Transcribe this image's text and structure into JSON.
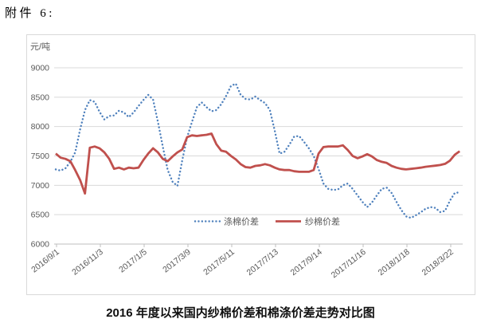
{
  "header": {
    "attachment_label": "附件 6:"
  },
  "title": "2016 年度以来国内纱棉价差和棉涤价差走势对比图",
  "chart_data": {
    "type": "line",
    "ylabel": "元/吨",
    "ylim": [
      6000,
      9000
    ],
    "yticks": [
      6000,
      6500,
      7000,
      7500,
      8000,
      8500,
      9000
    ],
    "xticklabels": [
      "2016/9/1",
      "2016/11/3",
      "2017/1/5",
      "2017/3/9",
      "2017/5/11",
      "2017/7/13",
      "2017/9/14",
      "2017/11/16",
      "2018/1/18",
      "2018/3/22"
    ],
    "x_unit": "weekly",
    "points_per_tick_interval": 9,
    "grid": true,
    "legend_position": "inside-bottom-center",
    "series": [
      {
        "name": "涤棉价差",
        "style": "dotted",
        "color": "#4F81BD",
        "values": [
          7270,
          7250,
          7290,
          7400,
          7560,
          7950,
          8280,
          8450,
          8420,
          8250,
          8120,
          8180,
          8190,
          8270,
          8240,
          8160,
          8240,
          8350,
          8450,
          8540,
          8460,
          8080,
          7660,
          7260,
          7060,
          6990,
          7430,
          7820,
          8080,
          8330,
          8410,
          8330,
          8260,
          8280,
          8380,
          8520,
          8690,
          8730,
          8540,
          8470,
          8460,
          8510,
          8450,
          8400,
          8280,
          7930,
          7540,
          7570,
          7690,
          7830,
          7840,
          7740,
          7630,
          7500,
          7280,
          7030,
          6940,
          6920,
          6930,
          7000,
          7030,
          6940,
          6830,
          6720,
          6630,
          6710,
          6830,
          6940,
          6960,
          6870,
          6720,
          6580,
          6470,
          6445,
          6490,
          6540,
          6600,
          6630,
          6615,
          6545,
          6565,
          6740,
          6870,
          6880
        ]
      },
      {
        "name": "纱棉价差",
        "style": "solid",
        "color": "#C0504D",
        "values": [
          7540,
          7470,
          7450,
          7410,
          7260,
          7090,
          6860,
          7640,
          7660,
          7630,
          7560,
          7450,
          7280,
          7300,
          7270,
          7300,
          7290,
          7300,
          7430,
          7540,
          7630,
          7560,
          7450,
          7410,
          7490,
          7560,
          7610,
          7820,
          7850,
          7840,
          7850,
          7860,
          7880,
          7700,
          7590,
          7570,
          7500,
          7440,
          7360,
          7310,
          7300,
          7330,
          7340,
          7360,
          7340,
          7300,
          7270,
          7260,
          7260,
          7240,
          7230,
          7230,
          7230,
          7260,
          7540,
          7650,
          7660,
          7660,
          7660,
          7680,
          7600,
          7500,
          7460,
          7490,
          7530,
          7490,
          7430,
          7400,
          7380,
          7330,
          7300,
          7280,
          7270,
          7280,
          7290,
          7300,
          7315,
          7325,
          7335,
          7345,
          7365,
          7420,
          7520,
          7580
        ]
      }
    ],
    "colors": {
      "grid": "#D9D9D9",
      "axis_line": "#BFBFBF",
      "axis_text": "#595959",
      "border": "#D9D9D9"
    }
  }
}
